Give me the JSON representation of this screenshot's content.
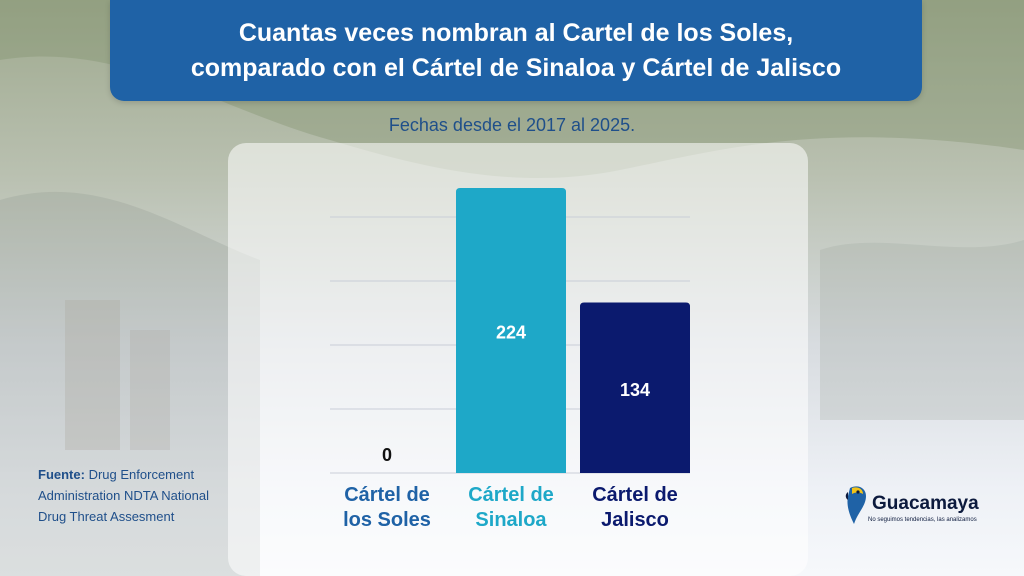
{
  "header": {
    "title_line1": "Cuantas veces nombran al Cartel de los Soles,",
    "title_line2": "comparado con el Cártel de Sinaloa y Cártel de Jalisco",
    "subtitle": "Fechas desde el 2017 al 2025."
  },
  "source": {
    "label": "Fuente:",
    "text": "Drug Enforcement Administration NDTA National Drug Threat Assesment"
  },
  "logo": {
    "name": "Guacamaya",
    "tagline": "No seguimos tendencias, las analizamos"
  },
  "colors": {
    "title_bg": "#1f62a6",
    "soles": "#1f62a6",
    "sinaloa": "#1ea8c8",
    "jalisco": "#0b1a6e"
  },
  "chart_data": {
    "type": "bar",
    "categories": [
      {
        "line1": "Cártel de",
        "line2": "los Soles"
      },
      {
        "line1": "Cártel de",
        "line2": "Sinaloa"
      },
      {
        "line1": "Cártel de",
        "line2": "Jalisco"
      }
    ],
    "values": [
      0,
      224,
      134
    ],
    "bar_colors": [
      "#1f62a6",
      "#1ea8c8",
      "#0b1a6e"
    ],
    "label_colors": [
      "#1f62a6",
      "#1ea8c8",
      "#0b1a6e"
    ],
    "value_label_colors": [
      "#111111",
      "#ffffff",
      "#ffffff"
    ],
    "ylim": [
      0,
      250
    ],
    "grid": true,
    "legend": "none"
  }
}
